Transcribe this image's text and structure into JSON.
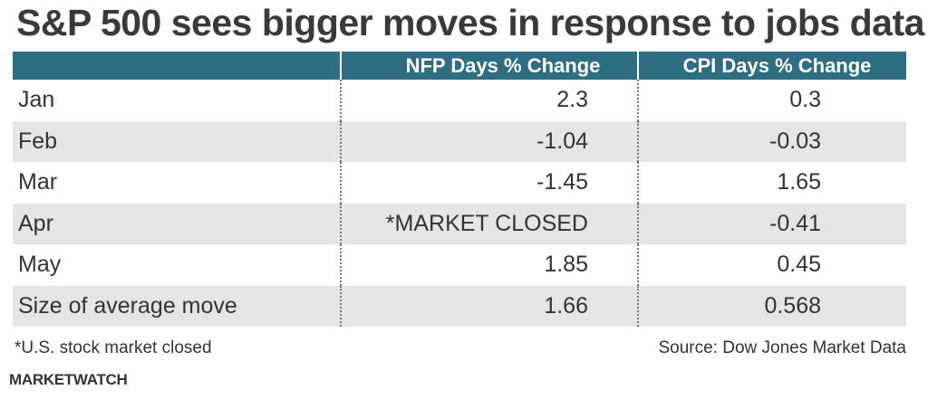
{
  "title": "S&P 500 sees bigger moves in response to jobs data",
  "chart_data": {
    "type": "table",
    "columns": [
      "",
      "NFP Days % Change",
      "CPI Days % Change"
    ],
    "rows": [
      {
        "label": "Jan",
        "nfp": "2.3",
        "cpi": "0.3"
      },
      {
        "label": "Feb",
        "nfp": "-1.04",
        "cpi": "-0.03"
      },
      {
        "label": "Mar",
        "nfp": "-1.45",
        "cpi": "1.65"
      },
      {
        "label": "Apr",
        "nfp": "*MARKET CLOSED",
        "cpi": "-0.41"
      },
      {
        "label": "May",
        "nfp": "1.85",
        "cpi": "0.45"
      },
      {
        "label": "Size of average move",
        "nfp": "1.66",
        "cpi": "0.568"
      }
    ],
    "header_color": "#2f6d83",
    "shade_color": "#e5e5e5"
  },
  "footnote": "*U.S. stock market closed",
  "source": "Source: Dow Jones Market Data",
  "brand": "MARKETWATCH"
}
